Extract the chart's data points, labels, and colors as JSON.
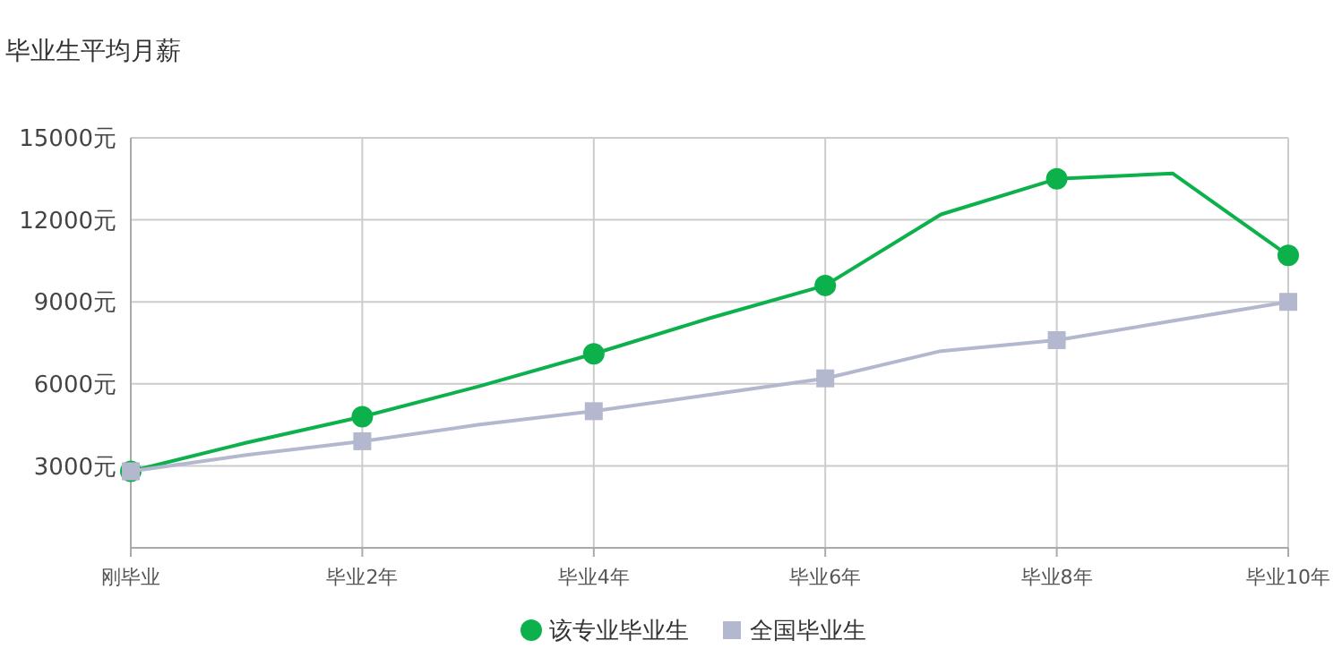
{
  "chart_data": {
    "type": "line",
    "title": "毕业生平均月薪",
    "categories": [
      "刚毕业",
      null,
      "毕业2年",
      null,
      "毕业4年",
      null,
      "毕业6年",
      null,
      "毕业8年",
      null,
      "毕业10年"
    ],
    "ylim": [
      0,
      15000
    ],
    "yticks": [
      {
        "value": 3000,
        "label": "3000元"
      },
      {
        "value": 6000,
        "label": "6000元"
      },
      {
        "value": 9000,
        "label": "9000元"
      },
      {
        "value": 12000,
        "label": "12000元"
      },
      {
        "value": 15000,
        "label": "15000元"
      }
    ],
    "grid": true,
    "legend": "bottom",
    "line_style": "solid",
    "series": [
      {
        "name": "该专业毕业生",
        "color": "#0db14b",
        "marker": "circle",
        "values": [
          2800,
          3850,
          4800,
          5900,
          7100,
          8400,
          9600,
          12200,
          13500,
          13700,
          10700
        ]
      },
      {
        "name": "全国毕业生",
        "color": "#b4b8cf",
        "marker": "square",
        "values": [
          2800,
          3400,
          3900,
          4500,
          5000,
          5600,
          6200,
          7200,
          7600,
          8300,
          9000
        ]
      }
    ]
  }
}
